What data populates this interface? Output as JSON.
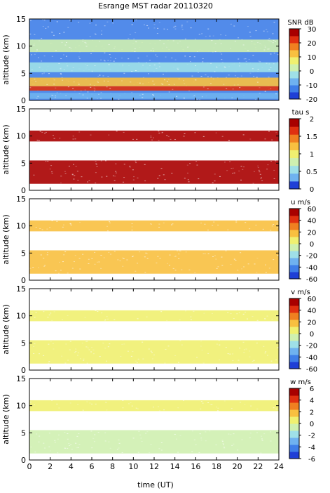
{
  "chart_data": {
    "type": "heatmap",
    "title": "Esrange MST radar 20110320",
    "xlabel": "time (UT)",
    "xlim": [
      0,
      24
    ],
    "xticks": [
      0,
      2,
      4,
      6,
      8,
      10,
      12,
      14,
      16,
      18,
      20,
      22,
      24
    ],
    "panels": [
      {
        "ylabel": "altitude (km)",
        "ylim": [
          0,
          15
        ],
        "yticks": [
          0,
          5,
          10,
          15
        ],
        "colorbar": {
          "label": "SNR dB",
          "range": [
            -20,
            30
          ],
          "ticks": [
            -20,
            -10,
            0,
            10,
            20,
            30
          ],
          "colors": [
            "#1f3fd6",
            "#3f7ee8",
            "#6fb2f0",
            "#9fe0e8",
            "#cff0b0",
            "#f0f070",
            "#f8c040",
            "#f08020",
            "#e03010",
            "#a80000"
          ]
        },
        "layers": [
          {
            "alt_top": 15,
            "alt_bottom": 0,
            "value": -14,
            "time_range": [
              0,
              24
            ]
          },
          {
            "alt_top": 11.2,
            "alt_bottom": 8.9,
            "value": 3,
            "time_range": [
              0,
              24
            ]
          },
          {
            "alt_top": 7.0,
            "alt_bottom": 5.2,
            "value": -4,
            "time_range": [
              0,
              24
            ]
          },
          {
            "alt_top": 4.2,
            "alt_bottom": 2.6,
            "value": 12,
            "time_range": [
              0,
              24
            ]
          },
          {
            "alt_top": 2.6,
            "alt_bottom": 1.8,
            "value": 24,
            "time_range": [
              0,
              24
            ]
          },
          {
            "alt_top": 1.4,
            "alt_bottom": 0.3,
            "value": -6,
            "time_range": [
              0,
              24
            ]
          }
        ]
      },
      {
        "ylabel": "altitude (km)",
        "ylim": [
          0,
          15
        ],
        "yticks": [
          0,
          5,
          10,
          15
        ],
        "colorbar": {
          "label": "tau s",
          "range": [
            0,
            2
          ],
          "ticks": [
            0,
            0.5,
            1,
            1.5,
            2
          ],
          "colors": [
            "#1f3fd6",
            "#6fb2f0",
            "#9fe0e8",
            "#cff0b0",
            "#f0f070",
            "#f8c040",
            "#f08020",
            "#e03010",
            "#a80000"
          ]
        },
        "layers": [
          {
            "alt_top": 11.0,
            "alt_bottom": 9.0,
            "value": 1.9,
            "time_range": [
              0,
              24
            ]
          },
          {
            "alt_top": 5.5,
            "alt_bottom": 1.2,
            "value": 1.9,
            "time_range": [
              0,
              24
            ]
          }
        ]
      },
      {
        "ylabel": "altitude (km)",
        "ylim": [
          0,
          15
        ],
        "yticks": [
          0,
          5,
          10,
          15
        ],
        "colorbar": {
          "label": "u m/s",
          "range": [
            -60,
            60
          ],
          "ticks": [
            -60,
            -40,
            -20,
            0,
            20,
            40,
            60
          ],
          "colors": [
            "#1f3fd6",
            "#3f7ee8",
            "#6fb2f0",
            "#9fe0e8",
            "#cff0b0",
            "#f0f070",
            "#f8c040",
            "#f08020",
            "#e03010",
            "#a80000"
          ]
        },
        "layers": [
          {
            "alt_top": 11.0,
            "alt_bottom": 9.0,
            "value": 22,
            "time_range": [
              0,
              24
            ]
          },
          {
            "alt_top": 5.5,
            "alt_bottom": 1.2,
            "value": 18,
            "time_range": [
              0,
              24
            ]
          }
        ]
      },
      {
        "ylabel": "altitude (km)",
        "ylim": [
          0,
          15
        ],
        "yticks": [
          0,
          5,
          10,
          15
        ],
        "colorbar": {
          "label": "v m/s",
          "range": [
            -60,
            60
          ],
          "ticks": [
            -60,
            -40,
            -20,
            0,
            20,
            40,
            60
          ],
          "colors": [
            "#1f3fd6",
            "#3f7ee8",
            "#6fb2f0",
            "#9fe0e8",
            "#cff0b0",
            "#f0f070",
            "#f8c040",
            "#f08020",
            "#e03010",
            "#a80000"
          ]
        },
        "layers": [
          {
            "alt_top": 11.0,
            "alt_bottom": 9.0,
            "value": 8,
            "time_range": [
              0,
              24
            ]
          },
          {
            "alt_top": 5.5,
            "alt_bottom": 1.2,
            "value": 9,
            "time_range": [
              0,
              24
            ]
          }
        ]
      },
      {
        "ylabel": "altitude (km)",
        "ylim": [
          0,
          15
        ],
        "yticks": [
          0,
          5,
          10,
          15
        ],
        "colorbar": {
          "label": "w m/s",
          "range": [
            -6,
            6
          ],
          "ticks": [
            -6,
            -4,
            -2,
            0,
            2,
            4,
            6
          ],
          "colors": [
            "#1f3fd6",
            "#3f7ee8",
            "#6fb2f0",
            "#9fe0e8",
            "#cff0b0",
            "#f0f070",
            "#f8c040",
            "#f08020",
            "#e03010",
            "#a80000"
          ]
        },
        "layers": [
          {
            "alt_top": 11.0,
            "alt_bottom": 9.0,
            "value": 0.4,
            "time_range": [
              0,
              24
            ]
          },
          {
            "alt_top": 5.5,
            "alt_bottom": 1.2,
            "value": -0.4,
            "time_range": [
              0,
              24
            ]
          }
        ]
      }
    ]
  }
}
